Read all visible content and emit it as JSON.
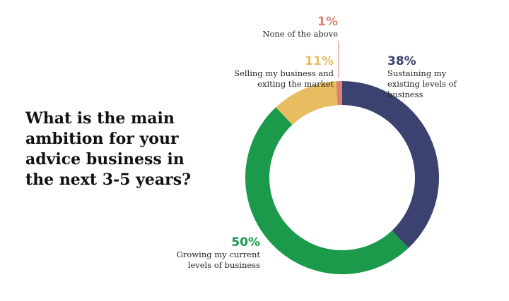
{
  "chart_data": {
    "type": "donut",
    "title": "What is the main ambition for your advice business in the next 3-5 years?",
    "categories": [
      "Sustaining my existing levels of business",
      "Growing my current levels of business",
      "Selling my business and exiting the market",
      "None of the above"
    ],
    "values": [
      38,
      50,
      11,
      1
    ],
    "value_labels": [
      "38%",
      "50%",
      "11%",
      "1%"
    ],
    "colors": [
      "#3b4270",
      "#1a9a4a",
      "#e8bd62",
      "#d98370"
    ]
  }
}
